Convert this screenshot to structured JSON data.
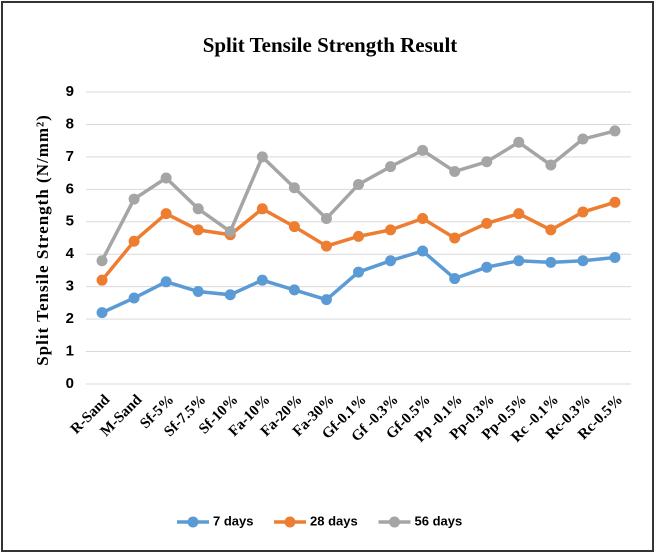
{
  "chart_data": {
    "type": "line",
    "title": "Split Tensile Strength Result",
    "y_label": "Split Tensile Strength (N/mm²)",
    "categories": [
      "R-Sand",
      "M-Sand",
      "Sf-5%",
      "Sf-7.5%",
      "Sf-10%",
      "Fa-10%",
      "Fa-20%",
      "Fa-30%",
      "Gf-0.1%",
      "Gf -0.3%",
      "Gf-0.5%",
      "Pp -0.1%",
      "Pp-0.3%",
      "Pp-0.5%",
      "Rc -0.1%",
      "Rc-0.3%",
      "Rc-0.5%"
    ],
    "series": [
      {
        "name": "7 days",
        "color": "#5b9bd5",
        "values": [
          2.2,
          2.65,
          3.15,
          2.85,
          2.75,
          3.2,
          2.9,
          2.6,
          3.45,
          3.8,
          4.1,
          3.25,
          3.6,
          3.8,
          3.75,
          3.8,
          3.9
        ]
      },
      {
        "name": "28 days",
        "color": "#ed7d31",
        "values": [
          3.2,
          4.4,
          5.25,
          4.75,
          4.6,
          5.4,
          4.85,
          4.25,
          4.55,
          4.75,
          5.1,
          4.5,
          4.95,
          5.25,
          4.75,
          5.3,
          5.6
        ]
      },
      {
        "name": "56 days",
        "color": "#a5a5a5",
        "values": [
          3.8,
          5.7,
          6.35,
          5.4,
          4.7,
          7.0,
          6.05,
          5.1,
          6.15,
          6.7,
          7.2,
          6.55,
          6.85,
          7.45,
          6.75,
          7.55,
          7.8
        ]
      }
    ],
    "ylim": [
      0,
      9
    ],
    "yticks": [
      0,
      1,
      2,
      3,
      4,
      5,
      6,
      7,
      8,
      9
    ],
    "grid": true,
    "legend": "bottom"
  }
}
